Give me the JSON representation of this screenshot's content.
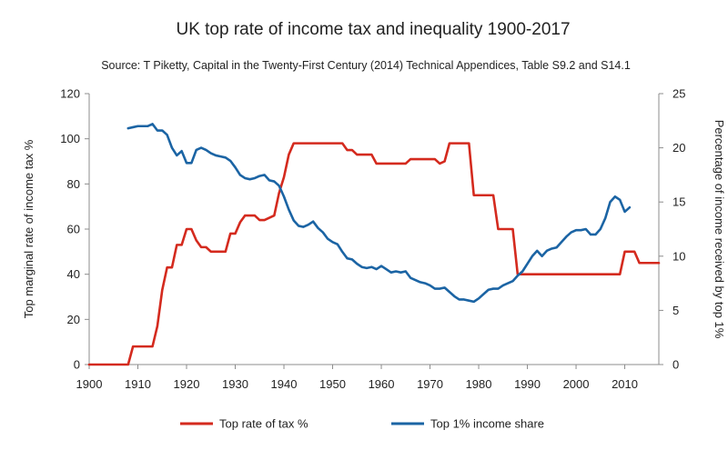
{
  "chart_data": {
    "type": "line",
    "title": "UK top rate of income tax and inequality 1900-2017",
    "subtitle": "Source: T Piketty, Capital in the Twenty-First Century (2014) Technical Appendices, Table S9.2 and S14.1",
    "xlabel": "",
    "ylabel": "Top marginal rate of income tax %",
    "y2label": "Percentage of income received by top 1%",
    "xlim": [
      1900,
      2017
    ],
    "ylim": [
      0,
      120
    ],
    "y2lim": [
      0,
      25
    ],
    "xticks": [
      "1900",
      "1910",
      "1920",
      "1930",
      "1940",
      "1950",
      "1960",
      "1970",
      "1980",
      "1990",
      "2000",
      "2010"
    ],
    "yticks": [
      "0",
      "20",
      "40",
      "60",
      "80",
      "100",
      "120"
    ],
    "y2ticks": [
      "0",
      "5",
      "10",
      "15",
      "20",
      "25"
    ],
    "legend_position": "bottom",
    "series": [
      {
        "name": "Top rate of tax %",
        "axis": "left",
        "color": "#d42a1e",
        "points": [
          [
            1900,
            0
          ],
          [
            1908,
            0
          ],
          [
            1909,
            8
          ],
          [
            1913,
            8
          ],
          [
            1914,
            17
          ],
          [
            1915,
            33
          ],
          [
            1916,
            43
          ],
          [
            1917,
            43
          ],
          [
            1918,
            53
          ],
          [
            1919,
            53
          ],
          [
            1920,
            60
          ],
          [
            1921,
            60
          ],
          [
            1922,
            55
          ],
          [
            1923,
            52
          ],
          [
            1924,
            52
          ],
          [
            1925,
            50
          ],
          [
            1927,
            50
          ],
          [
            1928,
            50
          ],
          [
            1929,
            58
          ],
          [
            1930,
            58
          ],
          [
            1931,
            63
          ],
          [
            1932,
            66
          ],
          [
            1934,
            66
          ],
          [
            1935,
            64
          ],
          [
            1936,
            64
          ],
          [
            1937,
            65
          ],
          [
            1938,
            66
          ],
          [
            1939,
            76
          ],
          [
            1940,
            83
          ],
          [
            1941,
            93
          ],
          [
            1942,
            98
          ],
          [
            1952,
            98
          ],
          [
            1953,
            95
          ],
          [
            1954,
            95
          ],
          [
            1955,
            93
          ],
          [
            1958,
            93
          ],
          [
            1959,
            89
          ],
          [
            1965,
            89
          ],
          [
            1966,
            91
          ],
          [
            1971,
            91
          ],
          [
            1972,
            89
          ],
          [
            1973,
            90
          ],
          [
            1974,
            98
          ],
          [
            1978,
            98
          ],
          [
            1979,
            75
          ],
          [
            1983,
            75
          ],
          [
            1984,
            60
          ],
          [
            1987,
            60
          ],
          [
            1988,
            40
          ],
          [
            2009,
            40
          ],
          [
            2010,
            50
          ],
          [
            2012,
            50
          ],
          [
            2013,
            45
          ],
          [
            2017,
            45
          ]
        ]
      },
      {
        "name": "Top 1% income share",
        "axis": "right",
        "color": "#1b64a4",
        "points": [
          [
            1908,
            21.8
          ],
          [
            1909,
            21.9
          ],
          [
            1910,
            22.0
          ],
          [
            1911,
            22.0
          ],
          [
            1912,
            22.0
          ],
          [
            1913,
            22.2
          ],
          [
            1914,
            21.6
          ],
          [
            1915,
            21.6
          ],
          [
            1916,
            21.2
          ],
          [
            1917,
            20.0
          ],
          [
            1918,
            19.3
          ],
          [
            1919,
            19.7
          ],
          [
            1920,
            18.6
          ],
          [
            1921,
            18.6
          ],
          [
            1922,
            19.8
          ],
          [
            1923,
            20.0
          ],
          [
            1924,
            19.8
          ],
          [
            1925,
            19.5
          ],
          [
            1926,
            19.3
          ],
          [
            1927,
            19.2
          ],
          [
            1928,
            19.1
          ],
          [
            1929,
            18.8
          ],
          [
            1930,
            18.2
          ],
          [
            1931,
            17.5
          ],
          [
            1932,
            17.2
          ],
          [
            1933,
            17.1
          ],
          [
            1934,
            17.2
          ],
          [
            1935,
            17.4
          ],
          [
            1936,
            17.5
          ],
          [
            1937,
            17.0
          ],
          [
            1938,
            16.9
          ],
          [
            1939,
            16.5
          ],
          [
            1940,
            15.5
          ],
          [
            1941,
            14.3
          ],
          [
            1942,
            13.3
          ],
          [
            1943,
            12.8
          ],
          [
            1944,
            12.7
          ],
          [
            1945,
            12.9
          ],
          [
            1946,
            13.2
          ],
          [
            1947,
            12.6
          ],
          [
            1948,
            12.2
          ],
          [
            1949,
            11.6
          ],
          [
            1950,
            11.3
          ],
          [
            1951,
            11.1
          ],
          [
            1952,
            10.4
          ],
          [
            1953,
            9.8
          ],
          [
            1954,
            9.7
          ],
          [
            1955,
            9.3
          ],
          [
            1956,
            9.0
          ],
          [
            1957,
            8.9
          ],
          [
            1958,
            9.0
          ],
          [
            1959,
            8.8
          ],
          [
            1960,
            9.1
          ],
          [
            1961,
            8.8
          ],
          [
            1962,
            8.5
          ],
          [
            1963,
            8.6
          ],
          [
            1964,
            8.5
          ],
          [
            1965,
            8.6
          ],
          [
            1966,
            8.0
          ],
          [
            1967,
            7.8
          ],
          [
            1968,
            7.6
          ],
          [
            1969,
            7.5
          ],
          [
            1970,
            7.3
          ],
          [
            1971,
            7.0
          ],
          [
            1972,
            7.0
          ],
          [
            1973,
            7.1
          ],
          [
            1974,
            6.7
          ],
          [
            1975,
            6.3
          ],
          [
            1976,
            6.0
          ],
          [
            1977,
            6.0
          ],
          [
            1978,
            5.9
          ],
          [
            1979,
            5.8
          ],
          [
            1980,
            6.1
          ],
          [
            1981,
            6.5
          ],
          [
            1982,
            6.9
          ],
          [
            1983,
            7.0
          ],
          [
            1984,
            7.0
          ],
          [
            1985,
            7.3
          ],
          [
            1986,
            7.5
          ],
          [
            1987,
            7.7
          ],
          [
            1988,
            8.2
          ],
          [
            1989,
            8.6
          ],
          [
            1990,
            9.3
          ],
          [
            1991,
            10.0
          ],
          [
            1992,
            10.5
          ],
          [
            1993,
            10.0
          ],
          [
            1994,
            10.5
          ],
          [
            1995,
            10.7
          ],
          [
            1996,
            10.8
          ],
          [
            1997,
            11.3
          ],
          [
            1998,
            11.8
          ],
          [
            1999,
            12.2
          ],
          [
            2000,
            12.4
          ],
          [
            2001,
            12.4
          ],
          [
            2002,
            12.5
          ],
          [
            2003,
            12.0
          ],
          [
            2004,
            12.0
          ],
          [
            2005,
            12.5
          ],
          [
            2006,
            13.5
          ],
          [
            2007,
            15.0
          ],
          [
            2008,
            15.5
          ],
          [
            2009,
            15.2
          ],
          [
            2010,
            14.1
          ],
          [
            2011,
            14.5
          ]
        ]
      }
    ]
  }
}
